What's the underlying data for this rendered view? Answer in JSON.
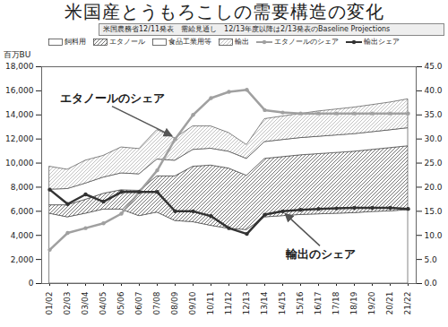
{
  "chart_data": {
    "type": "area",
    "title": "米国産とうもろこしの需要構造の変化",
    "subtitle": "米国農務省12/11発表　需給見通し　12/13年度以降は2/13発表のBaseline Projections",
    "ylabel": "百万BU",
    "categories": [
      "01/02",
      "02/03",
      "03/04",
      "04/05",
      "05/06",
      "06/07",
      "07/08",
      "08/09",
      "09/10",
      "10/11",
      "11/12",
      "12/13",
      "13/14",
      "14/15",
      "15/16",
      "16/17",
      "17/18",
      "18/19",
      "19/20",
      "20/21",
      "21/22"
    ],
    "stacked": true,
    "grid": false,
    "legend": "top",
    "series": [
      {
        "name": "飼料用",
        "type": "area",
        "color": "#ffffff",
        "values": [
          5800,
          5500,
          5800,
          6150,
          6150,
          5600,
          5900,
          5200,
          5100,
          4800,
          4550,
          4450,
          5500,
          5600,
          5700,
          5750,
          5800,
          5850,
          5950,
          6000,
          6100
        ]
      },
      {
        "name": "エタノール",
        "type": "area",
        "color": "#666666",
        "values": [
          700,
          1000,
          1150,
          1300,
          1600,
          2100,
          3000,
          3700,
          4600,
          5000,
          5000,
          4500,
          4850,
          4900,
          4950,
          5000,
          5050,
          5100,
          5150,
          5250,
          5300
        ]
      },
      {
        "name": "食品工業用等",
        "type": "area",
        "color": "#ffffff",
        "values": [
          1300,
          1350,
          1350,
          1350,
          1400,
          1370,
          1400,
          1300,
          1400,
          1400,
          1400,
          1400,
          1400,
          1420,
          1430,
          1440,
          1450,
          1460,
          1470,
          1480,
          1500
        ]
      },
      {
        "name": "輸出",
        "type": "area",
        "color": "#bbbbbb",
        "values": [
          1900,
          1600,
          1900,
          1800,
          2150,
          2100,
          2450,
          1850,
          1950,
          1850,
          1550,
          1150,
          1900,
          1950,
          2000,
          2100,
          2150,
          2200,
          2250,
          2300,
          2400
        ]
      },
      {
        "name": "エタノールのシェア",
        "type": "line",
        "axis": "y2",
        "color": "#a0a0a0",
        "marker": "circle",
        "values": [
          7,
          10.5,
          11.5,
          12.5,
          14.5,
          19,
          23.5,
          30,
          35,
          38.5,
          39.8,
          40.2,
          36,
          35.5,
          35.3,
          35.3,
          35.3,
          35.3,
          35.3,
          35.3,
          35.3
        ]
      },
      {
        "name": "輸出シェア",
        "type": "line",
        "axis": "y2",
        "color": "#333333",
        "marker": "circle",
        "values": [
          19.5,
          16.5,
          18.5,
          17,
          19,
          19,
          19,
          15,
          15,
          14,
          11.5,
          10.3,
          14.3,
          15,
          15.3,
          15.5,
          15.6,
          15.7,
          15.7,
          15.7,
          15.5
        ]
      }
    ],
    "ylim": [
      0,
      18000
    ],
    "yticks": [
      0,
      {
        "value": 2000,
        "label": "2,000"
      },
      {
        "value": 4000,
        "label": "4,000"
      },
      {
        "value": 6000,
        "label": "6,000"
      },
      {
        "value": 8000,
        "label": "8,000"
      },
      {
        "value": 10000,
        "label": "10,000"
      },
      {
        "value": 12000,
        "label": "12,000"
      },
      {
        "value": 14000,
        "label": "14,000"
      },
      {
        "value": 16000,
        "label": "16,000"
      },
      {
        "value": 18000,
        "label": "18,000"
      }
    ],
    "y2lim": [
      0,
      45
    ],
    "y2ticks": [
      {
        "value": 0,
        "label": "0.0"
      },
      {
        "value": 5,
        "label": "5.0"
      },
      {
        "value": 10,
        "label": "10.0"
      },
      {
        "value": 15,
        "label": "15.0"
      },
      {
        "value": 20,
        "label": "20.0"
      },
      {
        "value": 25,
        "label": "25.0"
      },
      {
        "value": 30,
        "label": "30.0"
      },
      {
        "value": 35,
        "label": "35.0"
      },
      {
        "value": 40,
        "label": "40.0"
      },
      {
        "value": 45,
        "label": "45.0"
      }
    ],
    "annotations": [
      {
        "text": "エタノールのシェア",
        "series": "エタノールのシェア",
        "x": "08/09"
      },
      {
        "text": "輸出のシェア",
        "series": "輸出シェア",
        "x": "14/15"
      }
    ]
  }
}
